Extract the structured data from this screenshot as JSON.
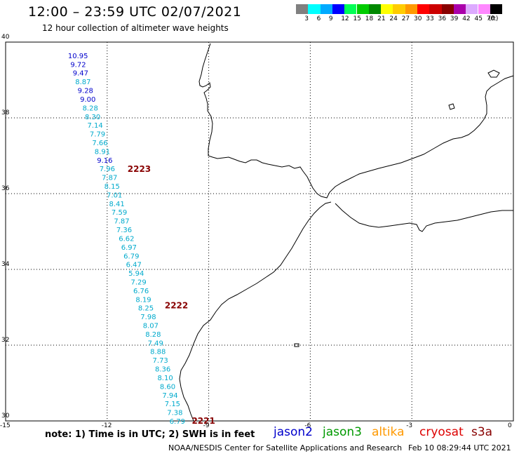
{
  "title": "12:00 – 23:59 UTC 02/07/2021",
  "subtitle": "12 hour collection of altimeter wave heights",
  "colorbar": {
    "labels": [
      "3",
      "6",
      "9",
      "12",
      "15",
      "18",
      "21",
      "24",
      "27",
      "30",
      "33",
      "36",
      "39",
      "42",
      "45",
      "70",
      "(ft)"
    ],
    "colors": [
      "#808080",
      "#00ffff",
      "#00aaff",
      "#0000ff",
      "#00ff55",
      "#00cc00",
      "#008800",
      "#ffff00",
      "#ffcc00",
      "#ff9900",
      "#ff0000",
      "#cc0000",
      "#880000",
      "#aa00aa",
      "#ddaaff",
      "#ff88ff",
      "#000000"
    ]
  },
  "axes": {
    "lat_labels": [
      "40",
      "38",
      "36",
      "34",
      "32",
      "30"
    ],
    "lon_labels": [
      "-15",
      "-12",
      "-9",
      "-6",
      "-3",
      "0"
    ],
    "lat_range": [
      30,
      40
    ],
    "lon_range": [
      -15,
      0
    ]
  },
  "track": {
    "color": "#00aacc",
    "high_color": "#0000cc",
    "values": [
      "10.95",
      "9.72",
      "9.47",
      "8.87",
      "9.28",
      "9.00",
      "8.28",
      "8.30",
      "7.14",
      "7.79",
      "7.66",
      "8.91",
      "9.16",
      "7.96",
      "7.87",
      "8.15",
      "7.01",
      "8.41",
      "7.59",
      "7.87",
      "7.36",
      "6.62",
      "6.97",
      "6.79",
      "6.47",
      "5.94",
      "7.29",
      "6.76",
      "8.19",
      "8.25",
      "7.98",
      "8.07",
      "8.28",
      "7.49",
      "8.88",
      "7.73",
      "8.36",
      "8.10",
      "8.60",
      "7.94",
      "7.15",
      "7.38",
      "6.79"
    ]
  },
  "pass_labels": [
    {
      "text": "2223",
      "lat": 36.65,
      "lon": -11.4
    },
    {
      "text": "2222",
      "lat": 33.05,
      "lon": -10.3
    },
    {
      "text": "2221",
      "lat": 30.0,
      "lon": -9.5
    }
  ],
  "pass_color": "#880000",
  "note": "note:  1) Time is in UTC;  2) SWH is in feet",
  "satellites": [
    {
      "name": "jason2",
      "color": "#0000cc"
    },
    {
      "name": "jason3",
      "color": "#009900"
    },
    {
      "name": "altika",
      "color": "#ff9900"
    },
    {
      "name": "cryosat",
      "color": "#dd0000"
    },
    {
      "name": "s3a",
      "color": "#880000"
    }
  ],
  "credit": "NOAA/NESDIS Center for Satellite Applications and Research",
  "timestamp": "Feb 10 08:29:44 UTC 2021"
}
